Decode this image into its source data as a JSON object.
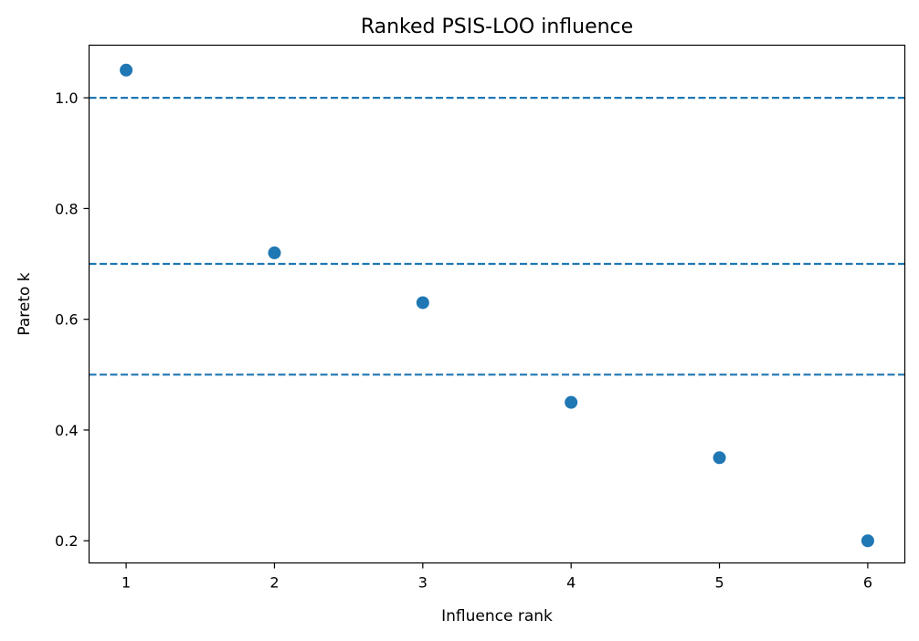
{
  "chart_data": {
    "type": "scatter",
    "title": "Ranked PSIS-LOO influence",
    "xlabel": "Influence rank",
    "ylabel": "Pareto k",
    "xlim": [
      0.75,
      6.25
    ],
    "ylim": [
      0.16,
      1.095
    ],
    "x_ticks": [
      "1",
      "2",
      "3",
      "4",
      "5",
      "6"
    ],
    "y_ticks": [
      "0.2",
      "0.4",
      "0.6",
      "0.8",
      "1.0"
    ],
    "series": [
      {
        "x": [
          1,
          2,
          3,
          4,
          5,
          6
        ],
        "y": [
          1.05,
          0.72,
          0.63,
          0.45,
          0.35,
          0.2
        ],
        "color": "#1f77b4"
      }
    ],
    "reference_lines": [
      {
        "y": 1.0,
        "style": "dashed",
        "color": "#1f77b4"
      },
      {
        "y": 0.7,
        "style": "dashed",
        "color": "#1f77b4"
      },
      {
        "y": 0.5,
        "style": "dashed",
        "color": "#1f77b4"
      }
    ],
    "grid": false,
    "legend": "none"
  }
}
